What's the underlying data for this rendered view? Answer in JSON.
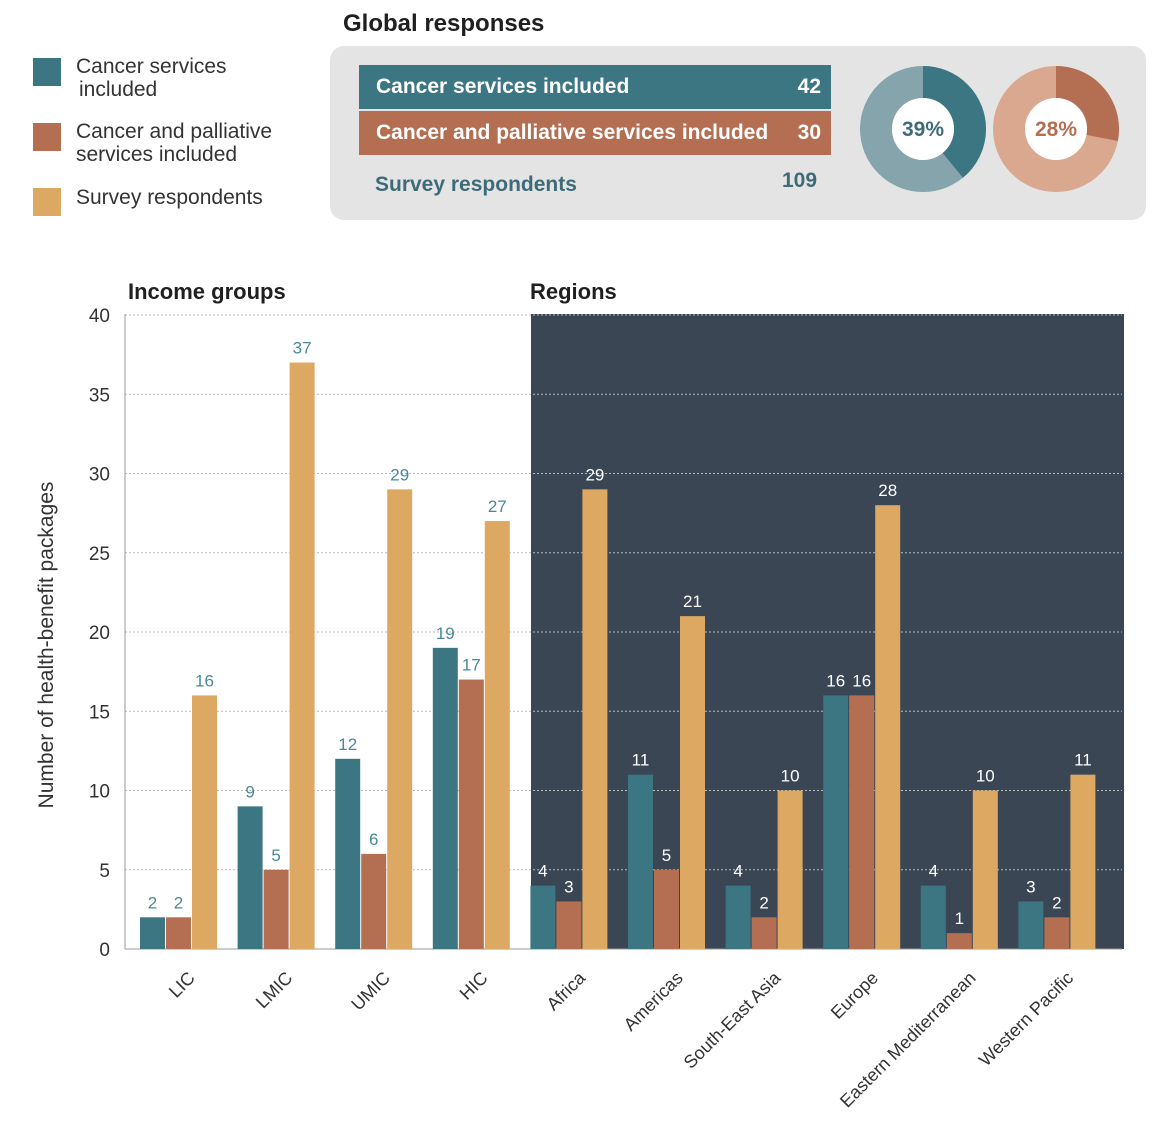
{
  "legend": {
    "items": [
      {
        "label_line1": "Cancer services",
        "label_line2": "included",
        "color": "#3d7683"
      },
      {
        "label_line1": "Cancer and palliative",
        "label_line2": "services included",
        "color": "#b46e52"
      },
      {
        "label_line1": "Survey respondents",
        "label_line2": "",
        "color": "#dda962"
      }
    ]
  },
  "global": {
    "title": "Global responses",
    "cancer_label": "Cancer services included",
    "cancer_value": "42",
    "palliative_label": "Cancer and palliative services included",
    "palliative_value": "30",
    "survey_label": "Survey respondents",
    "survey_value": "109",
    "donut_cancer_label": "39%",
    "donut_cancer_fraction": 0.39,
    "donut_palliative_label": "28%",
    "donut_palliative_fraction": 0.28
  },
  "chart_data": {
    "type": "bar",
    "ylabel": "Number of health-benefit packages",
    "ylim": [
      0,
      40
    ],
    "yticks": [
      0,
      5,
      10,
      15,
      20,
      25,
      30,
      35,
      40
    ],
    "grid": true,
    "section_labels": [
      "Income groups",
      "Regions"
    ],
    "categories": [
      "LIC",
      "LMIC",
      "UMIC",
      "HIC",
      "Africa",
      "Americas",
      "South-East Asia",
      "Europe",
      "Eastern Mediterranean",
      "Western Pacific"
    ],
    "series": [
      {
        "name": "Cancer services included",
        "color": "#3d7683",
        "values": [
          2,
          9,
          12,
          19,
          4,
          11,
          4,
          16,
          4,
          3
        ]
      },
      {
        "name": "Cancer and palliative services included",
        "color": "#b46e52",
        "values": [
          2,
          5,
          6,
          17,
          3,
          5,
          2,
          16,
          1,
          2
        ]
      },
      {
        "name": "Survey respondents",
        "color": "#dda962",
        "values": [
          16,
          37,
          29,
          27,
          29,
          21,
          10,
          28,
          10,
          11
        ]
      }
    ],
    "label_color_light_bg": "#4a8898",
    "label_color_dark_bg": "#ffffff",
    "regions_background": "#3a4654"
  }
}
